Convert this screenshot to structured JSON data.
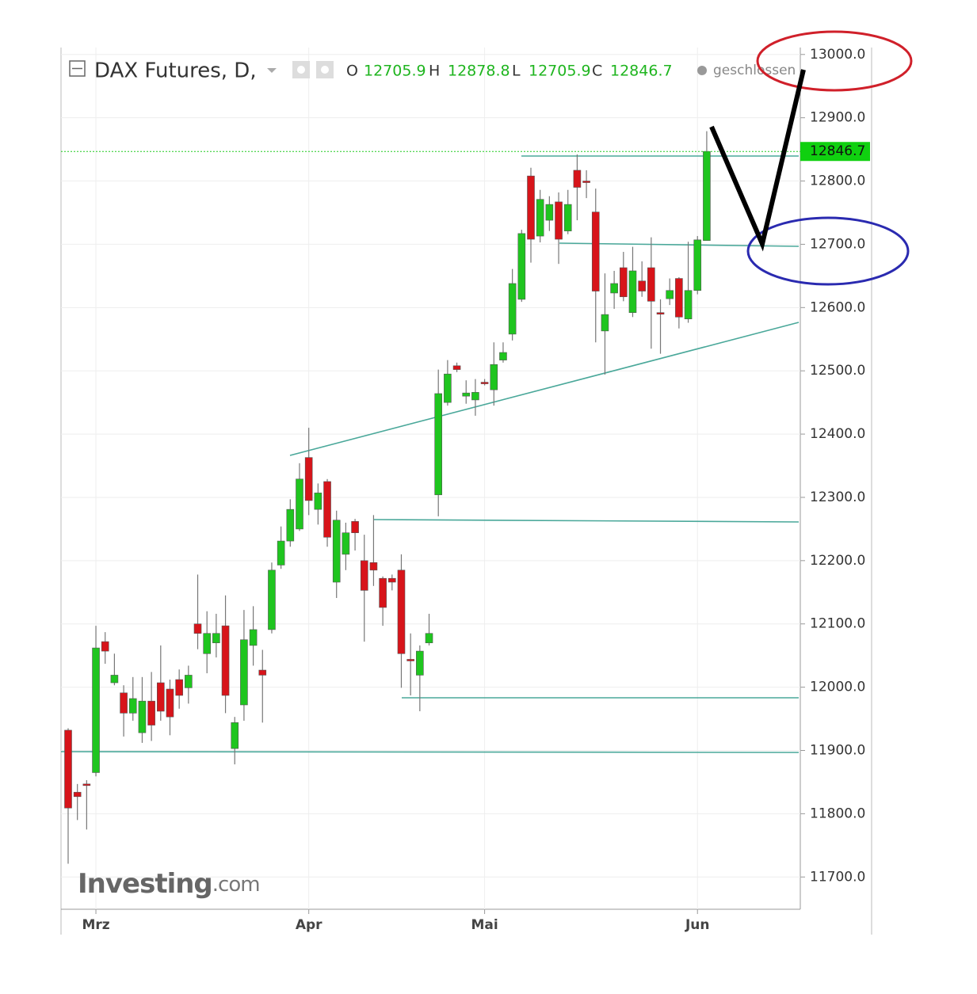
{
  "chart_data": {
    "type": "candlestick",
    "title": "DAX Futures, D,",
    "ohlc_labels": [
      "O",
      "H",
      "L",
      "C"
    ],
    "status": "geschlossen",
    "watermark": [
      "Investing",
      ".com"
    ],
    "categories": [
      null,
      null,
      null,
      "Mrz",
      null,
      null,
      null,
      null,
      null,
      null,
      null,
      null,
      null,
      null,
      null,
      null,
      null,
      null,
      null,
      null,
      null,
      null,
      null,
      null,
      null,
      null,
      "Apr",
      null,
      null,
      null,
      null,
      null,
      null,
      null,
      null,
      null,
      null,
      null,
      null,
      null,
      null,
      null,
      null,
      null,
      null,
      "Mai",
      null,
      null,
      null,
      null,
      null,
      null,
      null,
      null,
      null,
      null,
      null,
      null,
      null,
      null,
      null,
      null,
      null,
      null,
      null,
      null,
      null,
      null,
      "Jun",
      null
    ],
    "open": [
      11932,
      11834,
      11847,
      11865,
      12072,
      12007,
      11991,
      11959,
      11928,
      11978,
      12007,
      11997,
      12012,
      11999,
      12100,
      12053,
      12070,
      12097,
      11903,
      11972,
      12066,
      12027,
      12091,
      12193,
      12231,
      12250,
      12363,
      12281,
      12325,
      12166,
      12210,
      12262,
      12200,
      12197,
      12172,
      12172,
      12185,
      12044,
      12019,
      12070,
      12304,
      12450,
      12508,
      12460,
      12454,
      12482,
      12470,
      12517,
      12558,
      12613,
      12808,
      12713,
      12738,
      12767,
      12721,
      12817,
      12800,
      12751,
      12563,
      12623,
      12663,
      12592,
      12642,
      12663,
      12592,
      12614,
      12646,
      12582,
      12627,
      12705.9
    ],
    "high": [
      11935,
      11847,
      11853,
      12097,
      12087,
      12053,
      12003,
      12016,
      12016,
      12024,
      12066,
      12012,
      12028,
      12034,
      12178,
      12120,
      12116,
      12145,
      11953,
      12122,
      12128,
      12059,
      12197,
      12254,
      12297,
      12354,
      12410,
      12322,
      12329,
      12279,
      12260,
      12266,
      12241,
      12272,
      12175,
      12178,
      12210,
      12085,
      12066,
      12116,
      12502,
      12517,
      12513,
      12485,
      12487,
      12487,
      12545,
      12545,
      12661,
      12723,
      12821,
      12786,
      12776,
      12782,
      12786,
      12842,
      12817,
      12788,
      12654,
      12658,
      12688,
      12696,
      12673,
      12711,
      12613,
      12646,
      12648,
      12704,
      12713,
      12878.8
    ],
    "low": [
      11721,
      11790,
      11775,
      11859,
      12037,
      12003,
      11922,
      11947,
      11912,
      11915,
      11947,
      11924,
      11966,
      11974,
      12060,
      12022,
      12047,
      11959,
      11878,
      11947,
      12034,
      11944,
      12085,
      12187,
      12222,
      12247,
      12272,
      12257,
      12222,
      12141,
      12185,
      12216,
      12072,
      12160,
      12097,
      12153,
      11999,
      11987,
      11962,
      12066,
      12270,
      12445,
      12498,
      12448,
      12429,
      12477,
      12445,
      12513,
      12548,
      12609,
      12671,
      12703,
      12721,
      12669,
      12716,
      12738,
      12773,
      12545,
      12494,
      12598,
      12610,
      12585,
      12617,
      12535,
      12527,
      12604,
      12567,
      12576,
      12621,
      12705.9
    ],
    "close": [
      11809,
      11827,
      11847,
      12062,
      12057,
      12019,
      11959,
      11982,
      11978,
      11940,
      11962,
      11953,
      11987,
      12019,
      12085,
      12085,
      12085,
      11987,
      11944,
      12075,
      12091,
      12019,
      12185,
      12231,
      12281,
      12329,
      12295,
      12307,
      12237,
      12264,
      12244,
      12244,
      12153,
      12185,
      12126,
      12166,
      12053,
      12044,
      12057,
      12085,
      12464,
      12495,
      12502,
      12465,
      12466,
      12482,
      12510,
      12529,
      12638,
      12717,
      12708,
      12771,
      12763,
      12708,
      12763,
      12790,
      12800,
      12626,
      12589,
      12638,
      12617,
      12658,
      12626,
      12610,
      12592,
      12627,
      12585,
      12627,
      12707,
      12846.7
    ],
    "up_color": "#1fc51f",
    "down_color": "#d7141a",
    "ylim": [
      11649,
      13011
    ],
    "yticks": [
      {
        "value": 11700,
        "label": "11700.0"
      },
      {
        "value": 11800,
        "label": "11800.0"
      },
      {
        "value": 11900,
        "label": "11900.0"
      },
      {
        "value": 12000,
        "label": "12000.0"
      },
      {
        "value": 12100,
        "label": "12100.0"
      },
      {
        "value": 12200,
        "label": "12200.0"
      },
      {
        "value": 12300,
        "label": "12300.0"
      },
      {
        "value": 12400,
        "label": "12400.0"
      },
      {
        "value": 12500,
        "label": "12500.0"
      },
      {
        "value": 12600,
        "label": "12600.0"
      },
      {
        "value": 12700,
        "label": "12700.0"
      },
      {
        "value": 12800,
        "label": "12800.0"
      },
      {
        "value": 12900,
        "label": "12900.0"
      },
      {
        "value": 13000,
        "label": "13000.0"
      }
    ],
    "grid": true
  }
}
